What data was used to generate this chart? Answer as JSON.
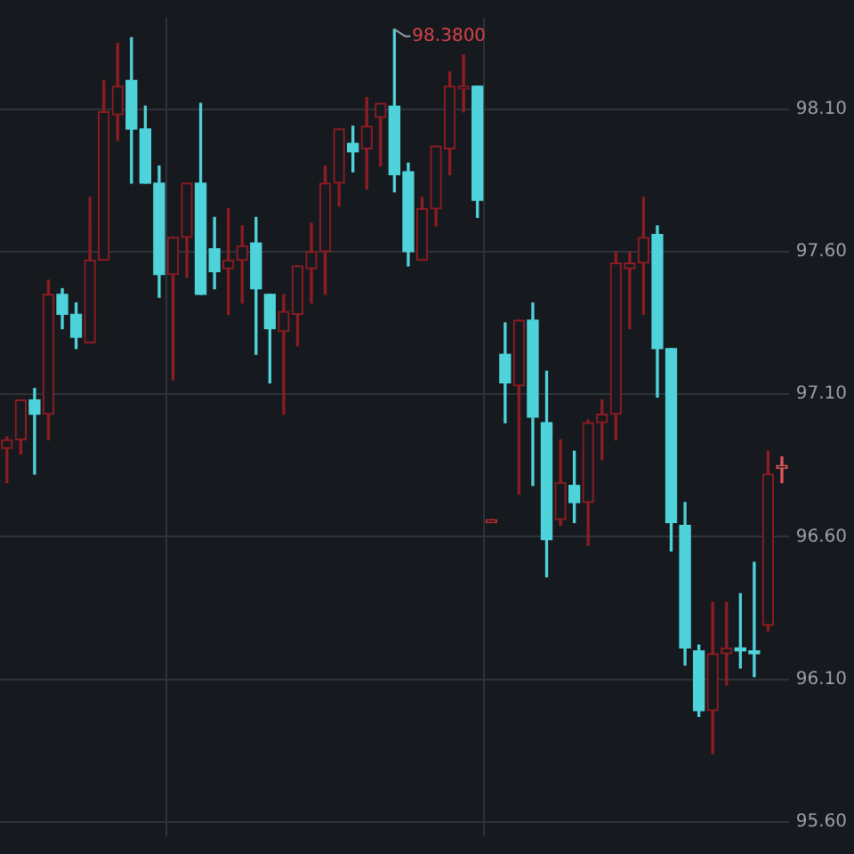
{
  "chart_data": {
    "type": "candlestick",
    "categories": [
      null,
      null,
      null,
      null,
      null,
      null,
      null,
      null,
      null,
      null,
      null,
      null,
      null,
      null,
      null,
      null,
      null,
      null,
      null,
      null,
      null,
      null,
      null,
      null,
      null,
      null,
      null,
      null,
      null,
      null,
      null,
      null,
      null,
      null,
      null,
      null,
      null,
      null,
      null,
      null,
      null,
      null,
      null,
      null,
      null,
      null,
      null,
      null,
      null,
      null,
      null,
      null,
      null,
      null,
      null,
      null,
      null
    ],
    "ohlc": [
      [
        96.91,
        96.95,
        96.79,
        96.94
      ],
      [
        96.94,
        97.08,
        96.89,
        97.08
      ],
      [
        97.08,
        97.12,
        96.82,
        97.03
      ],
      [
        97.03,
        97.5,
        96.94,
        97.45
      ],
      [
        97.45,
        97.47,
        97.33,
        97.38
      ],
      [
        97.38,
        97.42,
        97.26,
        97.3
      ],
      [
        97.28,
        97.79,
        97.28,
        97.57
      ],
      [
        97.57,
        98.2,
        97.57,
        98.09
      ],
      [
        98.08,
        98.33,
        97.99,
        98.18
      ],
      [
        98.2,
        98.35,
        97.84,
        98.03
      ],
      [
        98.03,
        98.11,
        97.84,
        97.84
      ],
      [
        97.84,
        97.9,
        97.44,
        97.52
      ],
      [
        97.52,
        97.65,
        97.15,
        97.65
      ],
      [
        97.65,
        97.84,
        97.51,
        97.84
      ],
      [
        97.84,
        98.12,
        97.45,
        97.45
      ],
      [
        97.61,
        97.72,
        97.47,
        97.53
      ],
      [
        97.54,
        97.75,
        97.38,
        97.57
      ],
      [
        97.57,
        97.69,
        97.42,
        97.62
      ],
      [
        97.63,
        97.72,
        97.24,
        97.47
      ],
      [
        97.45,
        97.45,
        97.14,
        97.33
      ],
      [
        97.32,
        97.45,
        97.03,
        97.39
      ],
      [
        97.38,
        97.55,
        97.27,
        97.55
      ],
      [
        97.54,
        97.7,
        97.42,
        97.6
      ],
      [
        97.6,
        97.9,
        97.45,
        97.84
      ],
      [
        97.84,
        98.03,
        97.76,
        98.03
      ],
      [
        97.98,
        98.04,
        97.88,
        97.95
      ],
      [
        97.96,
        98.14,
        97.82,
        98.04
      ],
      [
        98.07,
        98.12,
        97.9,
        98.12
      ],
      [
        98.11,
        98.38,
        97.81,
        97.87
      ],
      [
        97.88,
        97.91,
        97.55,
        97.6
      ],
      [
        97.57,
        97.79,
        97.57,
        97.75
      ],
      [
        97.75,
        97.97,
        97.69,
        97.97
      ],
      [
        97.96,
        98.23,
        97.87,
        98.18
      ],
      [
        98.17,
        98.29,
        98.09,
        98.18
      ],
      [
        98.18,
        98.18,
        97.72,
        97.78
      ],
      [
        96.65,
        96.66,
        96.65,
        96.66
      ],
      [
        97.24,
        97.35,
        97.0,
        97.14
      ],
      [
        97.13,
        97.36,
        96.75,
        97.36
      ],
      [
        97.36,
        97.42,
        96.78,
        97.02
      ],
      [
        97.0,
        97.18,
        96.46,
        96.59
      ],
      [
        96.66,
        96.94,
        96.64,
        96.79
      ],
      [
        96.78,
        96.9,
        96.65,
        96.72
      ],
      [
        96.72,
        97.01,
        96.57,
        97.0
      ],
      [
        97.0,
        97.08,
        96.87,
        97.03
      ],
      [
        97.03,
        97.6,
        96.94,
        97.56
      ],
      [
        97.54,
        97.6,
        97.33,
        97.56
      ],
      [
        97.56,
        97.79,
        97.38,
        97.65
      ],
      [
        97.66,
        97.69,
        97.09,
        97.26
      ],
      [
        97.26,
        97.26,
        96.55,
        96.65
      ],
      [
        96.64,
        96.72,
        96.15,
        96.21
      ],
      [
        96.2,
        96.22,
        95.97,
        95.99
      ],
      [
        95.99,
        96.37,
        95.84,
        96.19
      ],
      [
        96.19,
        96.37,
        96.08,
        96.21
      ],
      [
        96.21,
        96.4,
        96.14,
        96.2
      ],
      [
        96.2,
        96.51,
        96.11,
        96.19
      ],
      [
        96.29,
        96.9,
        96.27,
        96.82
      ],
      [
        96.84,
        96.88,
        96.79,
        96.85
      ]
    ],
    "colors": [
      "#8e1c22",
      "#8e1c22",
      "#4fd3da",
      "#8e1c22",
      "#4fd3da",
      "#4fd3da",
      "#8e1c22",
      "#8e1c22",
      "#8e1c22",
      "#4fd3da",
      "#4fd3da",
      "#4fd3da",
      "#8e1c22",
      "#8e1c22",
      "#4fd3da",
      "#4fd3da",
      "#8e1c22",
      "#8e1c22",
      "#4fd3da",
      "#4fd3da",
      "#8e1c22",
      "#8e1c22",
      "#8e1c22",
      "#8e1c22",
      "#8e1c22",
      "#4fd3da",
      "#8e1c22",
      "#8e1c22",
      "#4fd3da",
      "#4fd3da",
      "#8e1c22",
      "#8e1c22",
      "#8e1c22",
      "#8e1c22",
      "#4fd3da",
      "#c0282d",
      "#4fd3da",
      "#8e1c22",
      "#4fd3da",
      "#4fd3da",
      "#8e1c22",
      "#4fd3da",
      "#8e1c22",
      "#8e1c22",
      "#8e1c22",
      "#8e1c22",
      "#8e1c22",
      "#4fd3da",
      "#4fd3da",
      "#4fd3da",
      "#4fd3da",
      "#8e1c22",
      "#8e1c22",
      "#4fd3da",
      "#4fd3da",
      "#8e1c22",
      "#e0565b"
    ],
    "ylim": [
      95.55,
      98.42
    ],
    "yticks": [
      {
        "value": 95.6,
        "label": "95.60"
      },
      {
        "value": 96.1,
        "label": "96.10"
      },
      {
        "value": 96.6,
        "label": "96.60"
      },
      {
        "value": 97.1,
        "label": "97.10"
      },
      {
        "value": 97.6,
        "label": "97.60"
      },
      {
        "value": 98.1,
        "label": "98.10"
      }
    ],
    "annotations": [
      "98.3800"
    ],
    "grid": true,
    "tick_labels": "y",
    "legend": false
  }
}
